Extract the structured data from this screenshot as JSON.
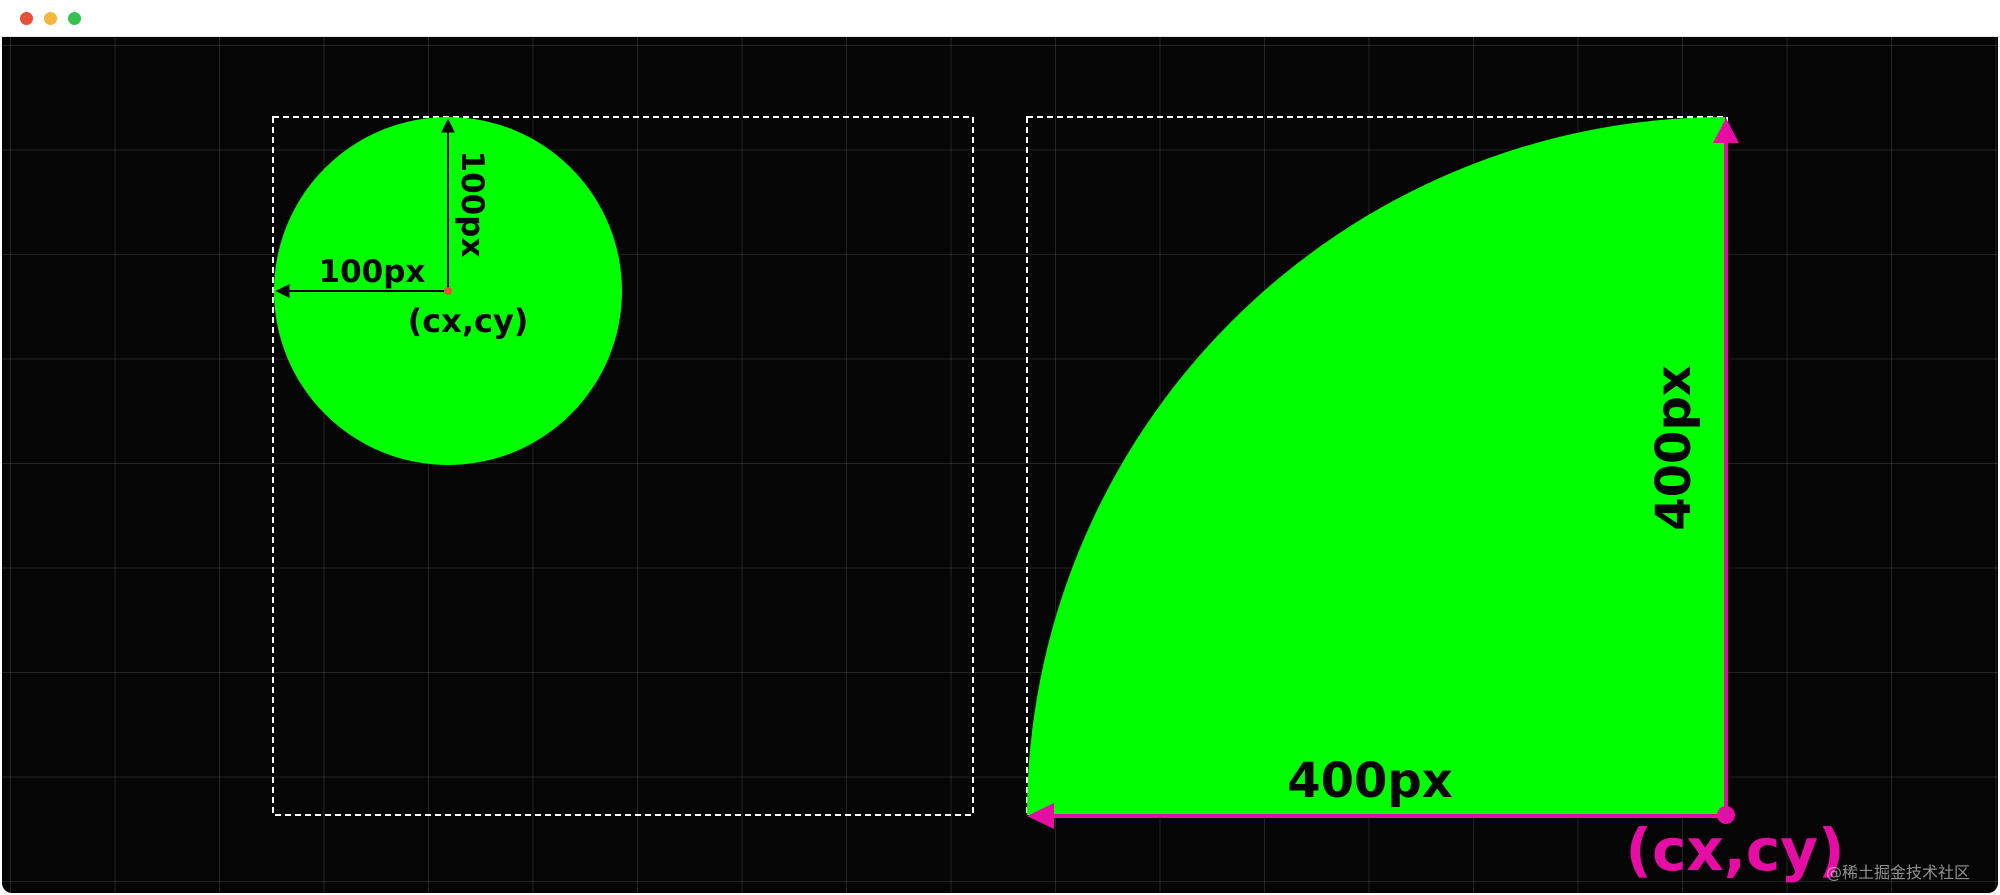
{
  "window": {
    "buttons": {
      "close_color": "#e8503a",
      "minimize_color": "#f4b63c",
      "maximize_color": "#36c24f"
    }
  },
  "colors": {
    "background": "#050505",
    "shape_fill": "#00ff00",
    "accent": "#e60da4",
    "center_dot": "#e8503a",
    "label_dark": "#050505",
    "box_outline": "#ffffff"
  },
  "left_diagram": {
    "horizontal_radius_label": "100px",
    "vertical_radius_label": "100px",
    "center_label": "(cx,cy)"
  },
  "right_diagram": {
    "horizontal_radius_label": "400px",
    "vertical_radius_label": "400px",
    "center_label": "(cx,cy)"
  },
  "watermark": "@稀土掘金技术社区"
}
